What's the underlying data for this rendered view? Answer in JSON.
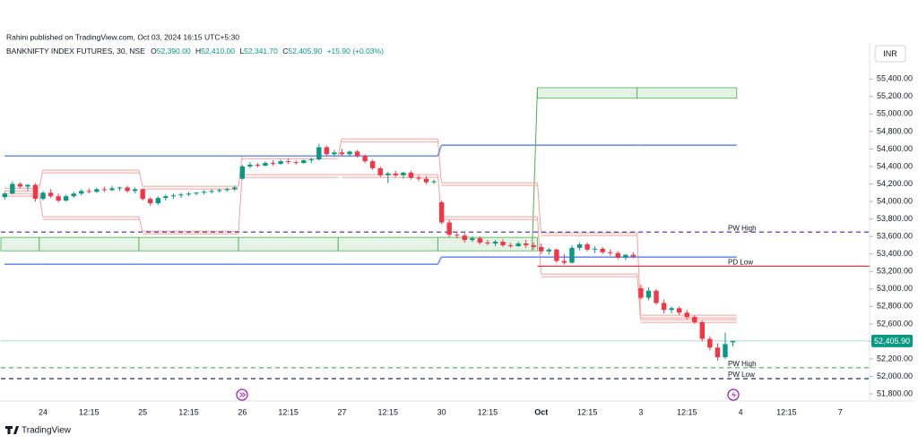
{
  "chart_data": {
    "type": "candlestick",
    "published": "Rahini published on TradingView.com, Oct 03, 2024 16:15 UTC+5:30",
    "symbol": "BANKNIFTY INDEX FUTURES, 30, NSE",
    "ohlc_legend": [
      "O",
      "52,390.00",
      "H",
      "52,410.00",
      "L",
      "52,341.70",
      "C",
      "52,405.90",
      "+15.90 (+0.03%)"
    ],
    "currency": "INR",
    "brand": "TradingView",
    "up_color": "#089981",
    "down_color": "#f23645",
    "categories": [
      null,
      null,
      null,
      null,
      null,
      "24",
      null,
      null,
      null,
      null,
      null,
      "12:15",
      null,
      null,
      null,
      null,
      null,
      null,
      "25",
      null,
      null,
      null,
      null,
      null,
      "12:15",
      null,
      null,
      null,
      null,
      null,
      null,
      "26",
      null,
      null,
      null,
      null,
      null,
      "12:15",
      null,
      null,
      null,
      null,
      null,
      null,
      "27",
      null,
      null,
      null,
      null,
      null,
      "12:15",
      null,
      null,
      null,
      null,
      null,
      null,
      "30",
      null,
      null,
      null,
      null,
      null,
      "12:15",
      null,
      null,
      null,
      null,
      null,
      null,
      "Oct",
      null,
      null,
      null,
      null,
      null,
      "12:15",
      null,
      null,
      null,
      null,
      null,
      null,
      "3",
      null,
      null,
      null,
      null,
      null,
      "12:15",
      null,
      null,
      null,
      null,
      null,
      null,
      "4",
      null,
      null,
      null,
      null,
      null,
      "12:15",
      null,
      null,
      null,
      null,
      null,
      null,
      "7"
    ],
    "open": [
      54050,
      54090,
      54200,
      54170,
      54190,
      54030,
      54100,
      54060,
      54010,
      54060,
      54090,
      54120,
      54110,
      54140,
      54130,
      54150,
      54160,
      54120,
      54140,
      54030,
      53980,
      54040,
      54060,
      54070,
      54080,
      54090,
      54100,
      54110,
      54120,
      54130,
      54140,
      54260,
      54400,
      54420,
      54410,
      54440,
      54430,
      54460,
      54450,
      54440,
      54470,
      54480,
      54620,
      54540,
      54560,
      54540,
      54570,
      54520,
      54460,
      54380,
      54300,
      54320,
      54300,
      54330,
      54270,
      54260,
      54220,
      53990,
      53760,
      53620,
      53610,
      53560,
      53580,
      53530,
      53520,
      53540,
      53500,
      53490,
      53520,
      53500,
      53480,
      53430,
      53450,
      53320,
      53300,
      53470,
      53510,
      53450,
      53460,
      53420,
      53410,
      53360,
      53390,
      53010,
      52900,
      52980,
      52840,
      52760,
      52780,
      52730,
      52680,
      52620,
      52430,
      52330,
      52220,
      52390,
      null,
      null,
      null,
      null,
      null,
      null,
      null,
      null,
      null,
      null,
      null,
      null,
      null,
      null
    ],
    "high": [
      54110,
      54230,
      54220,
      54200,
      54210,
      54120,
      54140,
      54090,
      54080,
      54110,
      54140,
      54150,
      54160,
      54170,
      54180,
      54170,
      54180,
      54160,
      54150,
      54050,
      54060,
      54080,
      54090,
      54100,
      54110,
      54110,
      54130,
      54140,
      54150,
      54160,
      54180,
      54420,
      54450,
      54440,
      54460,
      54470,
      54480,
      54490,
      54470,
      54480,
      54500,
      54660,
      54640,
      54590,
      54600,
      54580,
      54590,
      54540,
      54480,
      54400,
      54340,
      54350,
      54340,
      54350,
      54300,
      54290,
      54250,
      54010,
      53790,
      53660,
      53640,
      53600,
      53600,
      53560,
      53560,
      53570,
      53530,
      53540,
      53560,
      53530,
      53520,
      53470,
      53460,
      53400,
      53500,
      53530,
      53530,
      53490,
      53480,
      53450,
      53430,
      53400,
      53420,
      53050,
      53020,
      53000,
      52880,
      52800,
      52800,
      52760,
      52700,
      52640,
      52460,
      52380,
      52500,
      52410,
      null,
      null,
      null,
      null,
      null,
      null,
      null,
      null,
      null,
      null,
      null,
      null,
      null,
      null
    ],
    "low": [
      54020,
      54080,
      54150,
      54120,
      54000,
      54010,
      54040,
      53990,
      54000,
      54040,
      54070,
      54090,
      54100,
      54110,
      54120,
      54120,
      54100,
      54090,
      54010,
      53950,
      53960,
      54010,
      54030,
      54040,
      54060,
      54070,
      54080,
      54090,
      54100,
      54110,
      54120,
      54250,
      54380,
      54390,
      54400,
      54410,
      54420,
      54430,
      54420,
      54430,
      54440,
      54470,
      54520,
      54510,
      54520,
      54520,
      54500,
      54440,
      54360,
      54280,
      54210,
      54280,
      54260,
      54250,
      54230,
      54200,
      54200,
      53740,
      53590,
      53580,
      53530,
      53540,
      53510,
      53500,
      53490,
      53480,
      53470,
      53480,
      53470,
      53450,
      53400,
      53390,
      53300,
      53280,
      53290,
      53440,
      53430,
      53410,
      53400,
      53380,
      53340,
      53330,
      53350,
      52880,
      52870,
      52820,
      52720,
      52720,
      52700,
      52650,
      52600,
      52400,
      52300,
      52180,
      52200,
      52341.7,
      null,
      null,
      null,
      null,
      null,
      null,
      null,
      null,
      null,
      null,
      null,
      null,
      null,
      null
    ],
    "close": [
      54090,
      54200,
      54170,
      54190,
      54030,
      54100,
      54060,
      54010,
      54060,
      54090,
      54120,
      54110,
      54140,
      54130,
      54150,
      54160,
      54120,
      54140,
      54030,
      53980,
      54040,
      54060,
      54070,
      54080,
      54090,
      54100,
      54110,
      54120,
      54130,
      54140,
      54160,
      54400,
      54420,
      54410,
      54440,
      54430,
      54460,
      54450,
      54440,
      54470,
      54480,
      54620,
      54540,
      54560,
      54540,
      54570,
      54520,
      54460,
      54380,
      54300,
      54320,
      54300,
      54330,
      54270,
      54260,
      54220,
      54230,
      53760,
      53620,
      53610,
      53560,
      53580,
      53530,
      53520,
      53540,
      53500,
      53490,
      53520,
      53500,
      53480,
      53430,
      53450,
      53320,
      53300,
      53470,
      53510,
      53450,
      53460,
      53420,
      53410,
      53360,
      53390,
      53370,
      52900,
      52980,
      52840,
      52760,
      52780,
      52730,
      52680,
      52620,
      52430,
      52330,
      52220,
      52370,
      52405.9,
      null,
      null,
      null,
      null,
      null,
      null,
      null,
      null,
      null,
      null,
      null,
      null,
      null,
      null
    ],
    "last_price": {
      "value": 52405.9,
      "label": "52,405.90"
    },
    "last_price_color": "#089981",
    "ylim": [
      51750,
      55740
    ],
    "yticks": [
      {
        "value": 51800,
        "label": "51,800.00"
      },
      {
        "value": 52000,
        "label": "52,000.00"
      },
      {
        "value": 52200,
        "label": "52,200.00"
      },
      {
        "value": 52400,
        "label": "52,400.00"
      },
      {
        "value": 52600,
        "label": "52,600.00"
      },
      {
        "value": 52800,
        "label": "52,800.00"
      },
      {
        "value": 53000,
        "label": "53,000.00"
      },
      {
        "value": 53200,
        "label": "53,200.00"
      },
      {
        "value": 53400,
        "label": "53,400.00"
      },
      {
        "value": 53600,
        "label": "53,600.00"
      },
      {
        "value": 53800,
        "label": "53,800.00"
      },
      {
        "value": 54000,
        "label": "54,000.00"
      },
      {
        "value": 54200,
        "label": "54,200.00"
      },
      {
        "value": 54400,
        "label": "54,400.00"
      },
      {
        "value": 54600,
        "label": "54,600.00"
      },
      {
        "value": 54800,
        "label": "54,800.00"
      },
      {
        "value": 55000,
        "label": "55,000.00"
      },
      {
        "value": 55200,
        "label": "55,200.00"
      },
      {
        "value": 55400,
        "label": "55,400.00"
      }
    ],
    "step_lines": [
      {
        "color": "#f7a09c",
        "values": [
          54152,
          54357,
          54173,
          54520,
          54715,
          54214,
          53641,
          52700
        ]
      },
      {
        "color": "#f7a09c",
        "values": [
          54091,
          53825,
          53661,
          54306,
          54306,
          53825,
          53171,
          52649
        ]
      },
      {
        "color": "#6f8ff0",
        "values": [
          54520,
          54520,
          54520,
          54520,
          54520,
          54643,
          54643,
          54643
        ]
      },
      {
        "color": "#6f8ff0",
        "values": [
          53283,
          53283,
          53283,
          53283,
          53283,
          53365,
          53365,
          53365
        ]
      }
    ],
    "zones": {
      "color": "#4caf50",
      "top": [
        53590,
        53590,
        53590,
        53590,
        53590,
        53590,
        55300,
        55300
      ],
      "bottom": [
        53436,
        53436,
        53436,
        53436,
        53436,
        53436,
        55180,
        55180
      ]
    },
    "levels": [
      {
        "name": "PW High",
        "value": 53650,
        "color": "#5b3d9e",
        "dashed": true
      },
      {
        "name": "PD Low",
        "value": 53260,
        "color": "#f23645",
        "dashed": false,
        "from_session": 6
      },
      {
        "name": "PW High",
        "value": 52100,
        "color": "#4caf50",
        "dashed": true
      },
      {
        "name": "PW Low",
        "value": 51975,
        "color": "#1f2a78",
        "dashed": true
      }
    ]
  }
}
